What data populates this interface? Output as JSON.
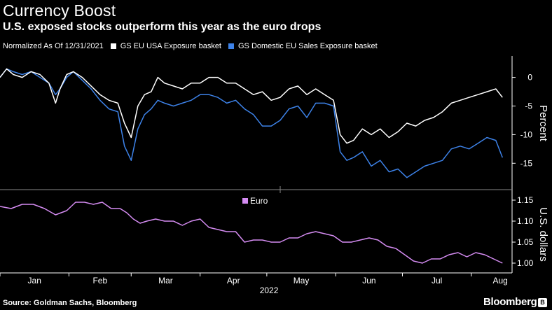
{
  "header": {
    "title": "Currency Boost",
    "subtitle": "U.S. exposed stocks outperform this year as the euro drops"
  },
  "legend": {
    "normalized_note": "Normalized As Of 12/31/2021",
    "usa_label": "GS EU USA Exposure basket",
    "domestic_label": "GS Domestic EU Sales Exposure basket",
    "euro_label": "Euro"
  },
  "footer": {
    "source": "Source: Goldman Sachs, Bloomberg",
    "brand": "Bloomberg",
    "brand_mark": "B"
  },
  "colors": {
    "usa": "#ffffff",
    "domestic": "#3d82e8",
    "euro": "#d58cf2",
    "axis": "#ffffff"
  },
  "chart_data": [
    {
      "type": "line",
      "title": "Currency Boost",
      "ylabel": "Percent",
      "xlabel": "2022",
      "ylim": [
        -19,
        3.5
      ],
      "yticks": [
        0,
        -5,
        -10,
        -15
      ],
      "ytick_labels": [
        "0",
        "-5",
        "-10",
        "-15"
      ],
      "months": [
        "Jan",
        "Feb",
        "Mar",
        "Apr",
        "May",
        "Jun",
        "Jul",
        "Aug"
      ],
      "year_label": "2022",
      "x_unit": "day of year 2022",
      "series": [
        {
          "name": "GS EU USA Exposure basket",
          "x": [
            0,
            3,
            6,
            10,
            14,
            18,
            22,
            25,
            27,
            30,
            33,
            37,
            41,
            45,
            49,
            53,
            56,
            59,
            62,
            65,
            68,
            71,
            74,
            78,
            82,
            86,
            90,
            94,
            98,
            102,
            106,
            110,
            114,
            118,
            122,
            126,
            130,
            134,
            138,
            142,
            146,
            150,
            153,
            156,
            159,
            163,
            167,
            171,
            175,
            179,
            183,
            187,
            191,
            195,
            199,
            203,
            207,
            211,
            215,
            219,
            223,
            226
          ],
          "values": [
            0.0,
            1.5,
            0.5,
            0.0,
            1.0,
            0.5,
            -1.0,
            -4.5,
            -2.0,
            0.5,
            1.0,
            0.0,
            -1.5,
            -3.0,
            -4.0,
            -4.5,
            -8.0,
            -10.5,
            -5.0,
            -3.0,
            -2.5,
            0.0,
            -1.0,
            -1.5,
            -2.0,
            -1.0,
            -1.0,
            0.0,
            0.0,
            -1.0,
            -1.0,
            -2.0,
            -3.0,
            -2.5,
            -4.0,
            -3.5,
            -2.0,
            -1.5,
            -3.0,
            -2.0,
            -3.0,
            -4.0,
            -10.0,
            -11.5,
            -11.0,
            -9.0,
            -10.0,
            -9.0,
            -10.5,
            -9.5,
            -8.0,
            -8.5,
            -7.5,
            -7.0,
            -6.0,
            -4.5,
            -4.0,
            -3.5,
            -3.0,
            -2.5,
            -2.0,
            -3.5
          ]
        },
        {
          "name": "GS Domestic EU Sales Exposure basket",
          "x": [
            0,
            3,
            6,
            10,
            14,
            18,
            22,
            25,
            27,
            30,
            33,
            37,
            41,
            45,
            49,
            53,
            56,
            59,
            62,
            65,
            68,
            71,
            74,
            78,
            82,
            86,
            90,
            94,
            98,
            102,
            106,
            110,
            114,
            118,
            122,
            126,
            130,
            134,
            138,
            142,
            146,
            150,
            153,
            156,
            159,
            163,
            167,
            171,
            175,
            179,
            183,
            187,
            191,
            195,
            199,
            203,
            207,
            211,
            215,
            219,
            223,
            226
          ],
          "values": [
            0.0,
            1.5,
            1.0,
            0.5,
            1.0,
            0.0,
            -1.0,
            -3.0,
            -2.0,
            0.0,
            1.0,
            -0.5,
            -2.0,
            -4.0,
            -5.5,
            -6.0,
            -12.0,
            -14.5,
            -9.0,
            -6.5,
            -5.5,
            -4.0,
            -4.5,
            -5.0,
            -4.5,
            -4.0,
            -3.0,
            -3.0,
            -3.5,
            -4.5,
            -4.0,
            -5.5,
            -6.5,
            -8.5,
            -8.5,
            -7.5,
            -5.5,
            -5.0,
            -7.0,
            -4.5,
            -4.5,
            -5.0,
            -13.0,
            -14.5,
            -14.0,
            -13.0,
            -15.5,
            -14.5,
            -16.5,
            -16.0,
            -17.5,
            -16.5,
            -15.5,
            -15.0,
            -14.5,
            -12.5,
            -12.0,
            -12.5,
            -11.5,
            -10.5,
            -11.0,
            -14.0
          ]
        }
      ]
    },
    {
      "type": "line",
      "ylabel": "U.S. dollars",
      "ylim": [
        0.98,
        1.165
      ],
      "yticks": [
        1.15,
        1.1,
        1.05,
        1.0
      ],
      "ytick_labels": [
        "1.15",
        "1.10",
        "1.05",
        "1.00"
      ],
      "x_unit": "day of year 2022",
      "series": [
        {
          "name": "Euro",
          "x": [
            0,
            5,
            10,
            15,
            20,
            25,
            30,
            34,
            38,
            42,
            46,
            50,
            54,
            57,
            60,
            63,
            66,
            70,
            74,
            78,
            82,
            86,
            90,
            94,
            98,
            102,
            106,
            110,
            114,
            118,
            122,
            126,
            130,
            134,
            138,
            142,
            146,
            150,
            154,
            158,
            162,
            166,
            170,
            174,
            178,
            182,
            186,
            190,
            194,
            198,
            202,
            206,
            210,
            214,
            218,
            222,
            226
          ],
          "values": [
            1.135,
            1.13,
            1.14,
            1.14,
            1.13,
            1.115,
            1.125,
            1.145,
            1.145,
            1.14,
            1.145,
            1.13,
            1.13,
            1.12,
            1.105,
            1.095,
            1.1,
            1.105,
            1.1,
            1.1,
            1.09,
            1.1,
            1.105,
            1.085,
            1.08,
            1.075,
            1.075,
            1.05,
            1.055,
            1.055,
            1.05,
            1.05,
            1.06,
            1.06,
            1.07,
            1.075,
            1.07,
            1.065,
            1.05,
            1.05,
            1.055,
            1.06,
            1.055,
            1.04,
            1.035,
            1.02,
            1.005,
            1.0,
            1.01,
            1.01,
            1.02,
            1.025,
            1.015,
            1.025,
            1.02,
            1.01,
            1.0
          ]
        }
      ]
    }
  ]
}
